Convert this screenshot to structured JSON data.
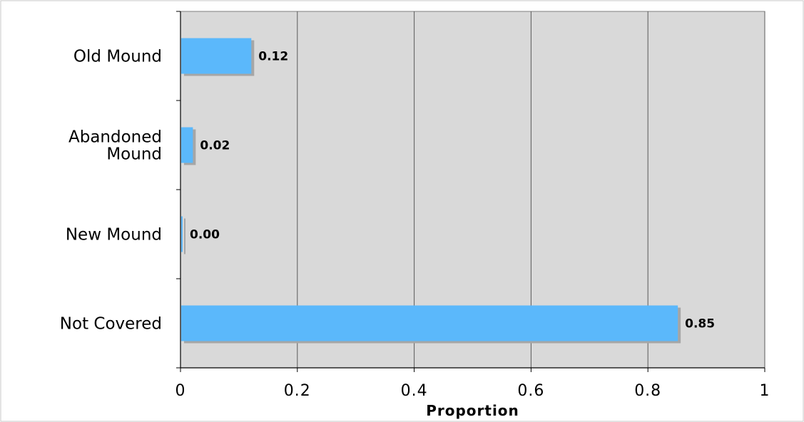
{
  "chart_data": {
    "type": "bar",
    "orientation": "horizontal",
    "categories": [
      [
        "Old Mound"
      ],
      [
        "Abandoned",
        "Mound"
      ],
      [
        "New Mound"
      ],
      [
        "Not Covered"
      ]
    ],
    "values": [
      0.12,
      0.02,
      0.0,
      0.85
    ],
    "value_labels": [
      "0.12",
      "0.02",
      "0.00",
      "0.85"
    ],
    "xlabel": "Proportion",
    "ylabel": "",
    "xlim": [
      0,
      1
    ],
    "xticks": [
      0,
      0.2,
      0.4,
      0.6,
      0.8,
      1
    ],
    "xtick_labels": [
      "0",
      "0.2",
      "0.4",
      "0.6",
      "0.8",
      "1"
    ],
    "grid": "vertical",
    "legend": "none",
    "colors": {
      "bar": "#5bb8fb",
      "bar_shadow": "#a6a6a6",
      "plot_background": "#d9d9d9",
      "gridline": "#5a5a5a"
    }
  }
}
